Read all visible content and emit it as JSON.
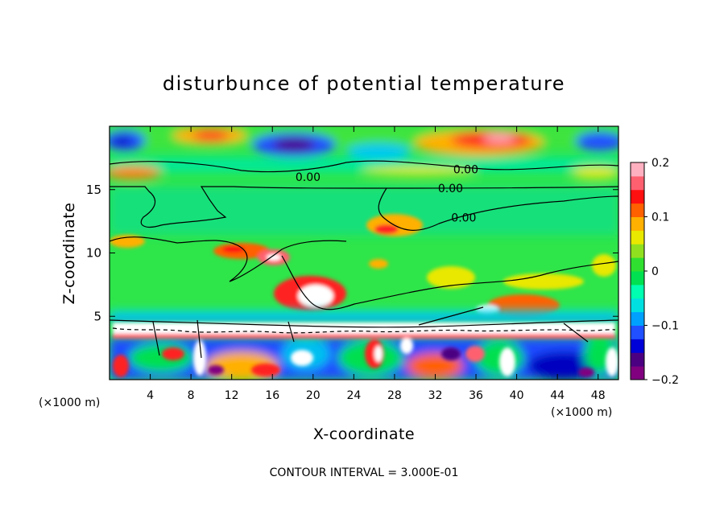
{
  "chart_data": {
    "type": "heatmap",
    "title": "disturbunce of potential temperature",
    "xlabel": "X-coordinate",
    "ylabel": "Z-coordinate",
    "x_unit_note": "(×1000 m)",
    "y_unit_note": "(×1000 m)",
    "xlim": [
      0,
      50
    ],
    "ylim": [
      0,
      20
    ],
    "x_ticks": [
      4,
      8,
      12,
      16,
      20,
      24,
      28,
      32,
      36,
      40,
      44,
      48
    ],
    "x_tick_labels": [
      "4",
      "8",
      "12",
      "16",
      "20",
      "24",
      "28",
      "32",
      "36",
      "40",
      "44",
      "48"
    ],
    "y_ticks": [
      5,
      10,
      15
    ],
    "y_tick_labels": [
      "5",
      "10",
      "15"
    ],
    "colorbar": {
      "min": -0.2,
      "max": 0.2,
      "ticks": [
        0.2,
        0.1,
        0,
        -0.1,
        -0.2
      ],
      "tick_labels": [
        "0.2",
        "0.1",
        "0",
        "−0.1",
        "−0.2"
      ],
      "colors": [
        "#800080",
        "#4b0082",
        "#0000d8",
        "#2050ff",
        "#00a0ff",
        "#00e0e0",
        "#00ffb0",
        "#00e050",
        "#30e030",
        "#90e020",
        "#e8e800",
        "#ffb000",
        "#ff6000",
        "#ff1010",
        "#ff6070",
        "#ffb0c0"
      ]
    },
    "contour_labels": [
      {
        "text": "0.00",
        "x": 19.5,
        "z": 16.0
      },
      {
        "text": "0.00",
        "x": 35.0,
        "z": 16.6
      },
      {
        "text": "0.00",
        "x": 33.5,
        "z": 15.1
      },
      {
        "text": "0.00",
        "x": 34.8,
        "z": 12.8
      }
    ],
    "footnote": "CONTOUR INTERVAL = 3.000E-01"
  }
}
